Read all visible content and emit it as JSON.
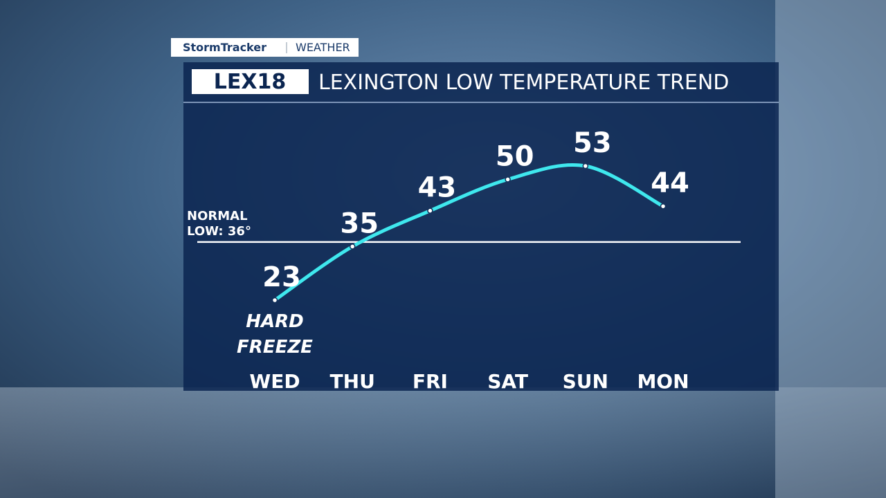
{
  "branding": {
    "brand": "StormTracker",
    "section": "WEATHER",
    "logo": "LEX18"
  },
  "chart_data": {
    "type": "line",
    "title": "LEXINGTON LOW TEMPERATURE TREND",
    "categories": [
      "WED",
      "THU",
      "FRI",
      "SAT",
      "SUN",
      "MON"
    ],
    "values": [
      23,
      35,
      43,
      50,
      53,
      44
    ],
    "color": "#3fe8ee",
    "normal": {
      "value": 36,
      "label_lines": [
        "NORMAL",
        "LOW: 36°"
      ]
    },
    "annotation_lines": [
      "HARD",
      "FREEZE"
    ]
  }
}
